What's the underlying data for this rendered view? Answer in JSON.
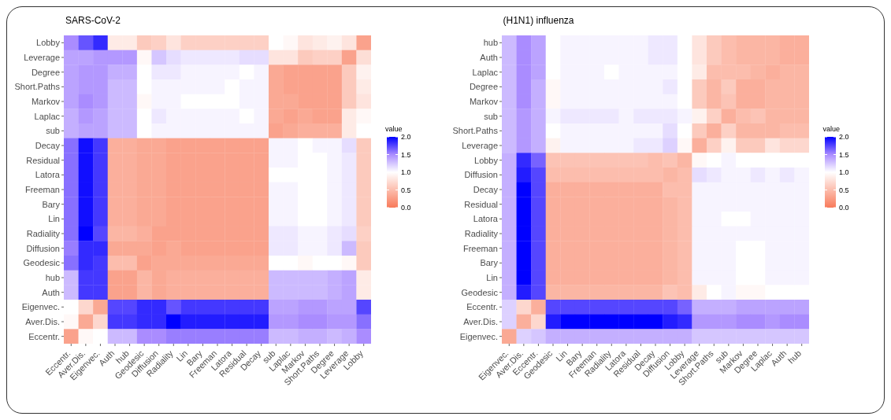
{
  "chart_data": [
    {
      "type": "heatmap",
      "title": "SARS-CoV-2",
      "clabel": "value",
      "clim": [
        0,
        2
      ],
      "cticks": [
        {
          "value": 0,
          "label": "0.0"
        },
        {
          "value": 0.5,
          "label": "0.5"
        },
        {
          "value": 1,
          "label": "1.0"
        },
        {
          "value": 1.5,
          "label": "1.5"
        },
        {
          "value": 2,
          "label": "2.0"
        }
      ],
      "categories": [
        "Eccentr.",
        "Aver.Dis.",
        "Eigenvec.",
        "Auth",
        "hub",
        "Geodesic",
        "Diffusion",
        "Radiality",
        "Lin",
        "Bary",
        "Freeman",
        "Latora",
        "Residual",
        "Decay",
        "sub",
        "Laplac",
        "Markov",
        "Short.Paths",
        "Degree",
        "Leverage",
        "Lobby"
      ],
      "y_categories": [
        "Lobby",
        "Leverage",
        "Degree",
        "Short.Paths",
        "Markov",
        "Laplac",
        "sub",
        "Decay",
        "Residual",
        "Latora",
        "Freeman",
        "Bary",
        "Lin",
        "Radiality",
        "Diffusion",
        "Geodesic",
        "hub",
        "Auth",
        "Eigenvec.",
        "Aver.Dis.",
        "Eccentr."
      ],
      "cells": [
        [
          1.5,
          1.7,
          1.85,
          0.85,
          0.85,
          0.6,
          0.65,
          0.8,
          0.65,
          0.65,
          0.65,
          0.65,
          0.65,
          0.65,
          1.0,
          0.95,
          0.8,
          0.85,
          0.9,
          0.8,
          0.3
        ],
        [
          1.4,
          1.4,
          1.45,
          1.45,
          1.45,
          0.95,
          1.25,
          1.15,
          1.1,
          1.1,
          1.1,
          1.1,
          1.15,
          1.15,
          0.8,
          0.8,
          0.6,
          0.65,
          0.65,
          0.3,
          0.75
        ],
        [
          1.4,
          1.45,
          1.45,
          1.35,
          1.35,
          1.0,
          1.1,
          1.1,
          1.05,
          1.05,
          1.05,
          1.05,
          1.0,
          1.05,
          0.35,
          0.3,
          0.3,
          0.3,
          0.3,
          0.6,
          0.9
        ],
        [
          1.4,
          1.45,
          1.45,
          1.3,
          1.3,
          1.0,
          1.05,
          1.05,
          1.05,
          1.05,
          1.05,
          1.0,
          1.05,
          1.05,
          0.35,
          0.3,
          0.3,
          0.3,
          0.3,
          0.6,
          0.85
        ],
        [
          1.4,
          1.5,
          1.45,
          1.3,
          1.3,
          0.95,
          1.05,
          1.05,
          1.0,
          1.0,
          1.0,
          1.0,
          1.05,
          1.05,
          0.35,
          0.35,
          0.3,
          0.3,
          0.3,
          0.6,
          0.8
        ],
        [
          1.35,
          1.45,
          1.4,
          1.3,
          1.3,
          1.0,
          1.1,
          1.05,
          1.05,
          1.05,
          1.05,
          1.05,
          1.0,
          1.05,
          0.35,
          0.3,
          0.35,
          0.3,
          0.3,
          0.85,
          0.95
        ],
        [
          1.35,
          1.4,
          1.4,
          1.3,
          1.3,
          1.0,
          1.05,
          1.05,
          1.05,
          1.05,
          1.05,
          1.05,
          1.05,
          1.05,
          0.3,
          0.35,
          0.4,
          0.4,
          0.4,
          0.85,
          1.0
        ],
        [
          1.6,
          1.95,
          1.8,
          0.4,
          0.4,
          0.35,
          0.35,
          0.3,
          0.3,
          0.3,
          0.3,
          0.3,
          0.3,
          0.3,
          1.05,
          1.05,
          1.0,
          1.05,
          1.05,
          1.15,
          0.6
        ],
        [
          1.6,
          1.95,
          1.8,
          0.4,
          0.4,
          0.35,
          0.35,
          0.3,
          0.3,
          0.3,
          0.3,
          0.3,
          0.3,
          0.3,
          1.05,
          1.05,
          1.0,
          1.0,
          1.05,
          1.1,
          0.6
        ],
        [
          1.6,
          1.95,
          1.8,
          0.4,
          0.4,
          0.35,
          0.35,
          0.3,
          0.3,
          0.3,
          0.3,
          0.3,
          0.3,
          0.3,
          1.0,
          1.0,
          1.0,
          1.0,
          1.05,
          1.1,
          0.6
        ],
        [
          1.6,
          1.95,
          1.8,
          0.4,
          0.4,
          0.35,
          0.35,
          0.3,
          0.3,
          0.3,
          0.3,
          0.3,
          0.3,
          0.3,
          1.05,
          1.05,
          1.0,
          1.0,
          1.05,
          1.1,
          0.6
        ],
        [
          1.6,
          1.95,
          1.8,
          0.4,
          0.4,
          0.35,
          0.35,
          0.3,
          0.3,
          0.3,
          0.3,
          0.3,
          0.3,
          0.3,
          1.05,
          1.05,
          1.0,
          1.0,
          1.05,
          1.1,
          0.6
        ],
        [
          1.6,
          1.95,
          1.8,
          0.4,
          0.4,
          0.35,
          0.35,
          0.3,
          0.3,
          0.3,
          0.3,
          0.3,
          0.3,
          0.3,
          1.05,
          1.05,
          1.0,
          1.0,
          1.05,
          1.1,
          0.6
        ],
        [
          1.6,
          2.0,
          1.75,
          0.45,
          0.45,
          0.4,
          0.3,
          0.3,
          0.3,
          0.3,
          0.3,
          0.3,
          0.3,
          0.3,
          1.1,
          1.1,
          1.05,
          1.05,
          1.1,
          1.15,
          0.65
        ],
        [
          1.55,
          1.85,
          1.85,
          0.35,
          0.35,
          0.35,
          0.3,
          0.35,
          0.3,
          0.3,
          0.3,
          0.3,
          0.3,
          0.3,
          1.1,
          1.1,
          1.05,
          1.05,
          1.1,
          1.3,
          0.6
        ],
        [
          1.6,
          1.85,
          1.8,
          0.5,
          0.5,
          0.3,
          0.35,
          0.35,
          0.35,
          0.35,
          0.35,
          0.35,
          0.35,
          0.35,
          1.0,
          1.0,
          0.95,
          1.0,
          1.0,
          0.95,
          0.6
        ],
        [
          1.3,
          1.8,
          1.8,
          0.3,
          0.3,
          0.45,
          0.35,
          0.4,
          0.4,
          0.4,
          0.4,
          0.4,
          0.4,
          0.4,
          1.3,
          1.3,
          1.3,
          1.3,
          1.35,
          1.4,
          0.85
        ],
        [
          1.3,
          1.8,
          1.8,
          0.3,
          0.3,
          0.45,
          0.35,
          0.4,
          0.4,
          0.4,
          0.4,
          0.4,
          0.4,
          0.4,
          1.3,
          1.3,
          1.3,
          1.3,
          1.35,
          1.4,
          0.85
        ],
        [
          1.0,
          0.7,
          0.35,
          1.75,
          1.75,
          1.85,
          1.85,
          1.7,
          1.8,
          1.8,
          1.8,
          1.8,
          1.8,
          1.8,
          1.4,
          1.4,
          1.45,
          1.45,
          1.4,
          1.4,
          1.75
        ],
        [
          0.95,
          0.35,
          0.7,
          1.8,
          1.8,
          1.85,
          1.85,
          2.0,
          1.9,
          1.9,
          1.9,
          1.9,
          1.9,
          1.9,
          1.45,
          1.45,
          1.5,
          1.5,
          1.45,
          1.45,
          1.6
        ],
        [
          0.3,
          0.95,
          1.0,
          1.3,
          1.3,
          1.5,
          1.5,
          1.55,
          1.55,
          1.55,
          1.55,
          1.55,
          1.55,
          1.55,
          1.3,
          1.3,
          1.35,
          1.35,
          1.3,
          1.35,
          1.5
        ]
      ]
    },
    {
      "type": "heatmap",
      "title": "(H1N1) influenza",
      "clabel": "value",
      "clim": [
        0,
        2
      ],
      "cticks": [
        {
          "value": 0,
          "label": "0.0"
        },
        {
          "value": 0.5,
          "label": "0.5"
        },
        {
          "value": 1,
          "label": "1.0"
        },
        {
          "value": 1.5,
          "label": "1.5"
        },
        {
          "value": 2,
          "label": "2.0"
        }
      ],
      "categories": [
        "Eigenvec.",
        "Aver.Dis.",
        "Eccentr.",
        "Geodesic",
        "Lin",
        "Bary",
        "Freeman",
        "Radiality",
        "Latora",
        "Residual",
        "Decay",
        "Diffusion",
        "Lobby",
        "Leverage",
        "Short.Paths",
        "sub",
        "Markov",
        "Degree",
        "Laplac",
        "Auth",
        "hub"
      ],
      "y_categories": [
        "hub",
        "Auth",
        "Laplac",
        "Degree",
        "Markov",
        "sub",
        "Short.Paths",
        "Leverage",
        "Lobby",
        "Diffusion",
        "Decay",
        "Residual",
        "Latora",
        "Radiality",
        "Freeman",
        "Bary",
        "Lin",
        "Geodesic",
        "Eccentr.",
        "Aver.Dis.",
        "Eigenvec."
      ],
      "cells": [
        [
          1.3,
          1.5,
          1.4,
          1.0,
          1.05,
          1.05,
          1.05,
          1.05,
          1.05,
          1.05,
          1.1,
          1.1,
          1.0,
          0.8,
          0.6,
          0.5,
          0.45,
          0.45,
          0.45,
          0.4,
          0.4
        ],
        [
          1.3,
          1.5,
          1.4,
          1.0,
          1.05,
          1.05,
          1.05,
          1.05,
          1.05,
          1.05,
          1.1,
          1.1,
          1.0,
          0.8,
          0.6,
          0.5,
          0.45,
          0.45,
          0.45,
          0.4,
          0.4
        ],
        [
          1.3,
          1.5,
          1.4,
          1.0,
          1.05,
          1.05,
          1.05,
          1.0,
          1.05,
          1.05,
          1.05,
          1.05,
          1.0,
          0.85,
          0.5,
          0.5,
          0.5,
          0.45,
          0.4,
          0.45,
          0.45
        ],
        [
          1.3,
          1.5,
          1.35,
          0.95,
          1.05,
          1.05,
          1.05,
          1.05,
          1.05,
          1.05,
          1.05,
          1.1,
          1.0,
          0.6,
          0.45,
          0.6,
          0.4,
          0.4,
          0.45,
          0.45,
          0.45
        ],
        [
          1.3,
          1.5,
          1.35,
          0.95,
          1.05,
          1.05,
          1.05,
          1.05,
          1.05,
          1.05,
          1.05,
          1.05,
          1.0,
          0.6,
          0.45,
          0.55,
          0.4,
          0.4,
          0.45,
          0.45,
          0.45
        ],
        [
          1.3,
          1.45,
          1.35,
          1.05,
          1.1,
          1.1,
          1.1,
          1.1,
          1.05,
          1.1,
          1.1,
          1.1,
          1.05,
          0.9,
          0.65,
          0.4,
          0.5,
          0.55,
          0.45,
          0.45,
          0.45
        ],
        [
          1.3,
          1.45,
          1.35,
          1.0,
          1.05,
          1.05,
          1.05,
          1.05,
          1.05,
          1.05,
          1.05,
          1.15,
          1.0,
          0.6,
          0.4,
          0.65,
          0.45,
          0.45,
          0.45,
          0.5,
          0.5
        ],
        [
          1.3,
          1.45,
          1.35,
          0.9,
          1.05,
          1.05,
          1.05,
          1.05,
          1.05,
          1.1,
          1.1,
          1.2,
          0.95,
          0.4,
          0.65,
          0.9,
          0.6,
          0.6,
          0.8,
          0.7,
          0.7
        ],
        [
          1.35,
          1.85,
          1.65,
          0.55,
          0.55,
          0.55,
          0.55,
          0.55,
          0.55,
          0.55,
          0.5,
          0.55,
          0.45,
          0.95,
          1.0,
          1.05,
          1.0,
          1.0,
          1.0,
          1.0,
          1.0
        ],
        [
          1.35,
          1.9,
          1.75,
          0.5,
          0.5,
          0.5,
          0.5,
          0.5,
          0.5,
          0.5,
          0.5,
          0.45,
          0.5,
          1.15,
          1.1,
          1.05,
          1.05,
          1.1,
          1.05,
          1.1,
          1.05
        ],
        [
          1.35,
          2.0,
          1.75,
          0.4,
          0.4,
          0.4,
          0.4,
          0.4,
          0.4,
          0.4,
          0.4,
          0.5,
          0.5,
          1.05,
          1.05,
          1.05,
          1.05,
          1.05,
          1.05,
          1.05,
          1.05
        ],
        [
          1.35,
          2.0,
          1.75,
          0.4,
          0.4,
          0.4,
          0.4,
          0.4,
          0.4,
          0.4,
          0.4,
          0.45,
          0.5,
          1.05,
          1.05,
          1.05,
          1.05,
          1.05,
          1.05,
          1.05,
          1.05
        ],
        [
          1.35,
          2.0,
          1.75,
          0.4,
          0.4,
          0.4,
          0.4,
          0.4,
          0.4,
          0.4,
          0.4,
          0.45,
          0.5,
          1.05,
          1.05,
          1.0,
          1.0,
          1.05,
          1.05,
          1.05,
          1.05
        ],
        [
          1.35,
          2.0,
          1.75,
          0.4,
          0.4,
          0.4,
          0.4,
          0.4,
          0.4,
          0.4,
          0.4,
          0.45,
          0.5,
          1.05,
          1.05,
          1.05,
          1.05,
          1.05,
          1.05,
          1.05,
          1.05
        ],
        [
          1.35,
          2.0,
          1.75,
          0.4,
          0.4,
          0.4,
          0.4,
          0.4,
          0.4,
          0.4,
          0.4,
          0.45,
          0.5,
          1.05,
          1.05,
          1.05,
          1.0,
          1.0,
          1.05,
          1.05,
          1.05
        ],
        [
          1.35,
          2.0,
          1.75,
          0.4,
          0.4,
          0.4,
          0.4,
          0.4,
          0.4,
          0.4,
          0.4,
          0.45,
          0.5,
          1.05,
          1.05,
          1.05,
          1.0,
          1.0,
          1.05,
          1.05,
          1.05
        ],
        [
          1.35,
          2.0,
          1.75,
          0.4,
          0.4,
          0.4,
          0.4,
          0.4,
          0.4,
          0.4,
          0.4,
          0.45,
          0.5,
          1.05,
          1.05,
          1.05,
          1.0,
          1.0,
          1.05,
          1.05,
          1.05
        ],
        [
          1.35,
          1.9,
          1.75,
          0.45,
          0.45,
          0.45,
          0.45,
          0.45,
          0.45,
          0.45,
          0.45,
          0.55,
          0.5,
          0.85,
          1.0,
          1.05,
          0.95,
          0.95,
          1.0,
          1.0,
          1.0
        ],
        [
          1.2,
          0.7,
          0.4,
          1.75,
          1.75,
          1.75,
          1.75,
          1.75,
          1.75,
          1.75,
          1.75,
          1.75,
          1.65,
          1.35,
          1.35,
          1.35,
          1.4,
          1.4,
          1.4,
          1.4,
          1.4
        ],
        [
          1.2,
          0.4,
          0.7,
          1.9,
          2.0,
          2.0,
          2.0,
          2.0,
          2.0,
          2.0,
          2.0,
          1.9,
          1.85,
          1.45,
          1.45,
          1.45,
          1.5,
          1.5,
          1.45,
          1.5,
          1.5
        ],
        [
          0.35,
          1.2,
          1.25,
          1.35,
          1.35,
          1.35,
          1.35,
          1.35,
          1.35,
          1.35,
          1.35,
          1.35,
          1.35,
          1.25,
          1.25,
          1.25,
          1.25,
          1.25,
          1.25,
          1.25,
          1.25
        ]
      ]
    }
  ]
}
